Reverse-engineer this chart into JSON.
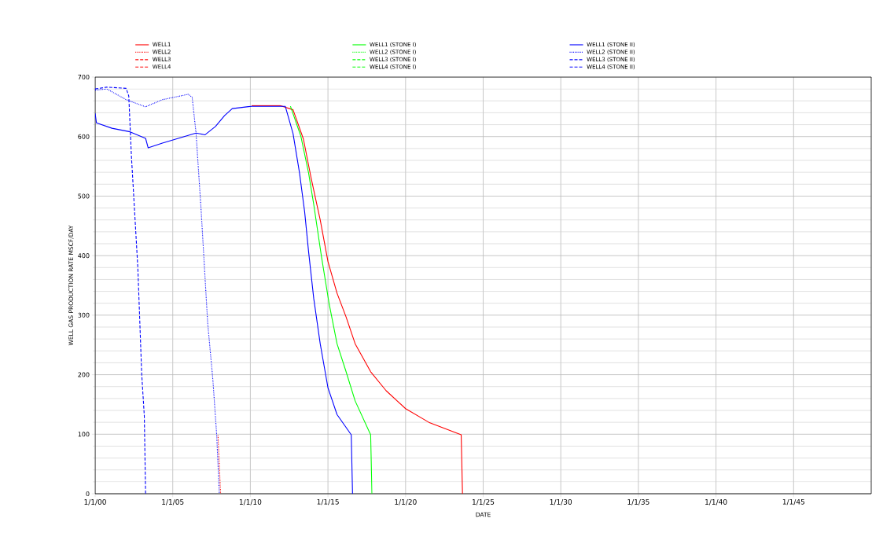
{
  "chart_data": {
    "type": "line",
    "xlabel": "DATE",
    "ylabel": "WELL  GAS PRODUCTION RATE   MSCF/DAY",
    "xlim": [
      "2000-01-01",
      "2050-01-01"
    ],
    "ylim": [
      0,
      700
    ],
    "xticks": [
      {
        "value": "2000-01-01",
        "label": "1/1/00"
      },
      {
        "value": "2005-01-01",
        "label": "1/1/05"
      },
      {
        "value": "2010-01-01",
        "label": "1/1/10"
      },
      {
        "value": "2015-01-01",
        "label": "1/1/15"
      },
      {
        "value": "2020-01-01",
        "label": "1/1/20"
      },
      {
        "value": "2025-01-01",
        "label": "1/1/25"
      },
      {
        "value": "2030-01-01",
        "label": "1/1/30"
      },
      {
        "value": "2035-01-01",
        "label": "1/1/35"
      },
      {
        "value": "2040-01-01",
        "label": "1/1/40"
      },
      {
        "value": "2045-01-01",
        "label": "1/1/45"
      }
    ],
    "yticks": [
      0,
      100,
      200,
      300,
      400,
      500,
      600,
      700
    ],
    "grid": true,
    "legend": "top",
    "marker": "none",
    "series": [
      {
        "name": "WELL1",
        "color": "#ff0000",
        "line_style": "solid",
        "x": [
          "2010-02",
          "2011-12",
          "2012-10",
          "2013-06",
          "2013-12",
          "2014-07",
          "2015-01",
          "2015-08",
          "2016-03",
          "2016-10",
          "2017-10",
          "2018-10",
          "2020-01",
          "2021-07",
          "2023-08",
          "2023-09"
        ],
        "values": [
          652,
          652,
          645,
          596,
          530,
          460,
          390,
          337,
          297,
          252,
          205,
          173,
          143,
          120,
          99,
          0
        ]
      },
      {
        "name": "WELL2",
        "color": "#ff0000",
        "line_style": "dotted",
        "x": [
          "2007-12",
          "2008-02"
        ],
        "values": [
          98,
          0
        ]
      },
      {
        "name": "WELL3",
        "color": "#ff0000",
        "line_style": "dashed"
      },
      {
        "name": "WELL4",
        "color": "#ff0000",
        "line_style": "dashed"
      },
      {
        "name": "WELL1 (STONE I)",
        "color": "#00ff00",
        "line_style": "solid",
        "x": [
          "2012-08",
          "2013-04",
          "2013-10",
          "2014-02",
          "2014-08",
          "2015-02",
          "2015-08",
          "2016-03",
          "2016-10",
          "2017-10",
          "2017-11"
        ],
        "values": [
          651,
          601,
          539,
          486,
          398,
          318,
          252,
          205,
          156,
          99,
          0
        ]
      },
      {
        "name": "WELL2 (STONE I)",
        "color": "#00ff00",
        "line_style": "dotted"
      },
      {
        "name": "WELL3 (STONE I)",
        "color": "#00ff00",
        "line_style": "dashed"
      },
      {
        "name": "WELL4 (STONE I)",
        "color": "#00ff00",
        "line_style": "dashed"
      },
      {
        "name": "WELL1 (STONE II)",
        "color": "#0000ff",
        "line_style": "solid",
        "x": [
          "2000-01",
          "2000-02",
          "2001-02",
          "2002-04",
          "2003-04",
          "2003-06",
          "2004-05",
          "2006-07",
          "2007-02",
          "2007-10",
          "2008-05",
          "2008-11",
          "2010-02",
          "2011-12",
          "2012-04",
          "2012-10",
          "2013-03",
          "2013-07",
          "2013-10",
          "2014-02",
          "2014-07",
          "2015-01",
          "2015-08",
          "2016-07",
          "2016-08"
        ],
        "values": [
          639,
          623,
          614,
          608,
          597,
          581,
          589,
          606,
          603,
          617,
          635,
          647,
          651,
          651,
          651,
          605,
          539,
          473,
          407,
          328,
          252,
          178,
          133,
          99,
          0
        ]
      },
      {
        "name": "WELL2 (STONE II)",
        "color": "#0000ff",
        "line_style": "dotted",
        "x": [
          "2000-01",
          "2000-10",
          "2002-01",
          "2003-04",
          "2004-05",
          "2006-01",
          "2006-04",
          "2006-07",
          "2006-11",
          "2007-04",
          "2007-08",
          "2007-11",
          "2008-01"
        ],
        "values": [
          678,
          680,
          662,
          650,
          662,
          671,
          666,
          606,
          474,
          287,
          192,
          98,
          0
        ]
      },
      {
        "name": "WELL3 (STONE II)",
        "color": "#0000ff",
        "line_style": "dashed",
        "x": [
          "2000-01",
          "2000-10",
          "2002-01",
          "2002-03",
          "2002-05",
          "2002-10",
          "2003-01",
          "2003-03",
          "2003-04"
        ],
        "values": [
          680,
          683,
          681,
          668,
          569,
          380,
          201,
          131,
          0
        ]
      },
      {
        "name": "WELL4 (STONE II)",
        "color": "#0000ff",
        "line_style": "dashed"
      }
    ]
  }
}
